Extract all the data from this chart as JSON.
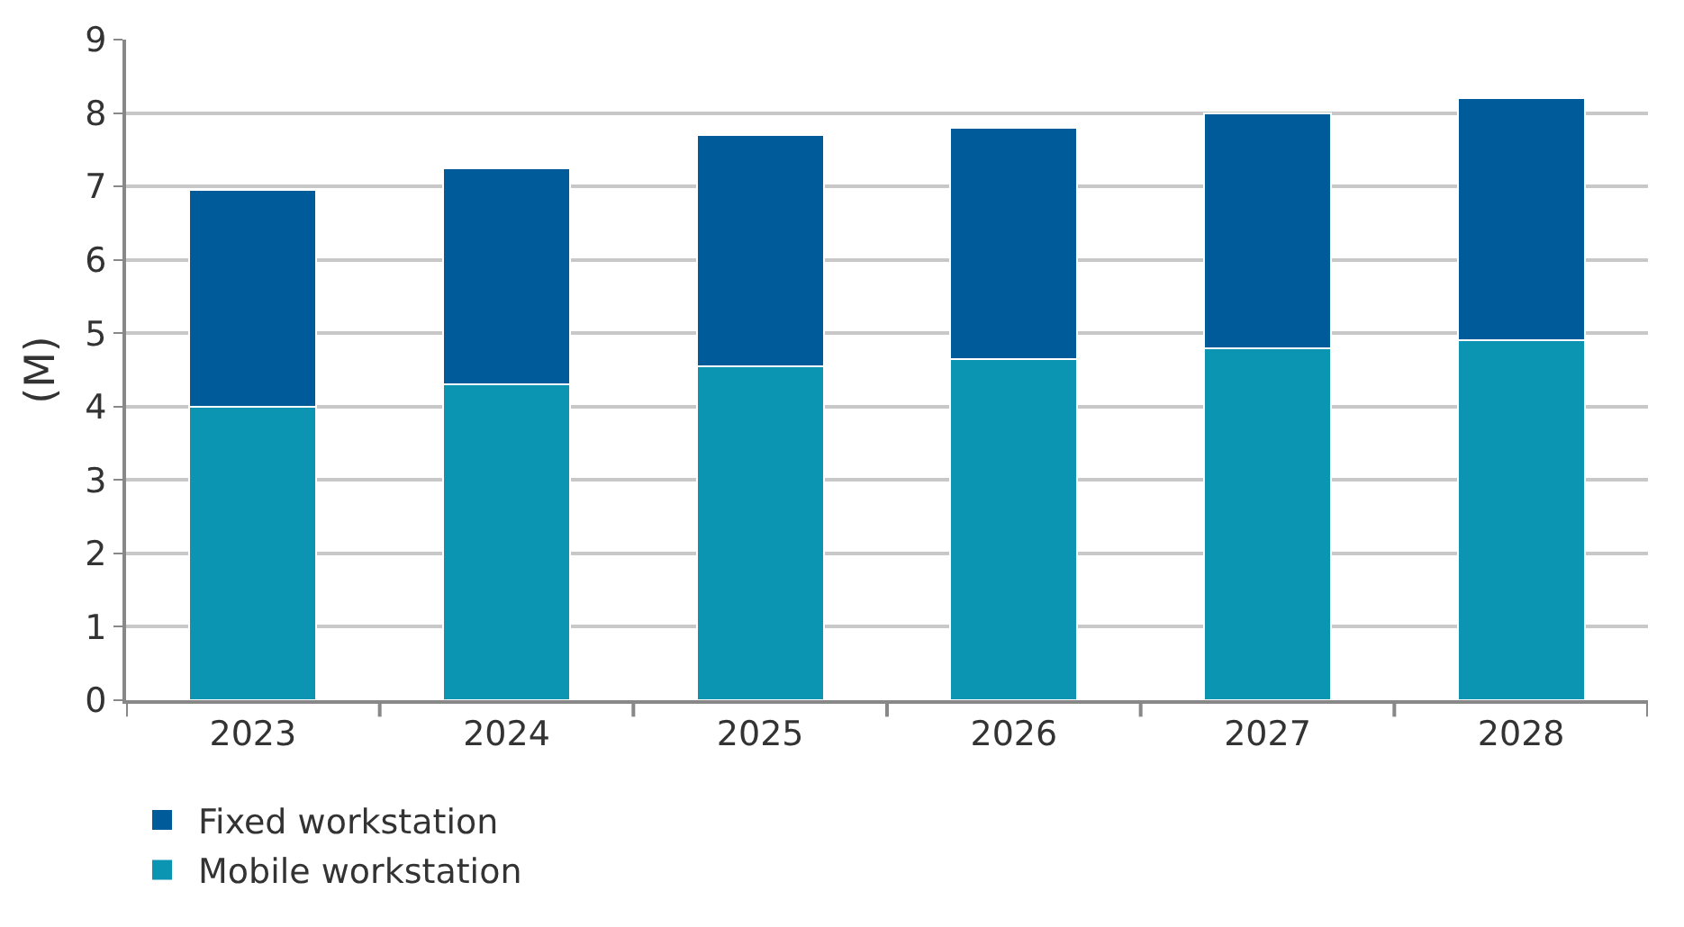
{
  "chart_data": {
    "type": "bar",
    "stacked": true,
    "ylabel": "(M)",
    "categories": [
      "2023",
      "2024",
      "2025",
      "2026",
      "2027",
      "2028"
    ],
    "series": [
      {
        "name": "Mobile workstation",
        "color": "#0b95b2",
        "values": [
          4.0,
          4.3,
          4.55,
          4.65,
          4.8,
          4.9
        ]
      },
      {
        "name": "Fixed workstation",
        "color": "#005b9a",
        "values": [
          2.95,
          2.95,
          3.15,
          3.15,
          3.2,
          3.3
        ]
      }
    ],
    "ylim": [
      0,
      9
    ],
    "yticks": [
      0,
      1,
      2,
      3,
      4,
      5,
      6,
      7,
      8,
      9
    ],
    "grid": "y",
    "legend": "bottom left"
  }
}
